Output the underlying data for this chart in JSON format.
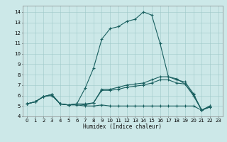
{
  "title": "",
  "xlabel": "Humidex (Indice chaleur)",
  "bg_color": "#cce8e8",
  "grid_color": "#9ec8c8",
  "line_color": "#1a6060",
  "xlim": [
    -0.5,
    23.5
  ],
  "ylim": [
    4.0,
    14.6
  ],
  "xticks": [
    0,
    1,
    2,
    3,
    4,
    5,
    6,
    7,
    8,
    9,
    10,
    11,
    12,
    13,
    14,
    15,
    16,
    17,
    18,
    19,
    20,
    21,
    22,
    23
  ],
  "yticks": [
    4,
    5,
    6,
    7,
    8,
    9,
    10,
    11,
    12,
    13,
    14
  ],
  "series": [
    [
      5.2,
      5.4,
      5.9,
      6.0,
      5.2,
      5.1,
      5.1,
      5.0,
      5.0,
      5.1,
      5.0,
      5.0,
      5.0,
      5.0,
      5.0,
      5.0,
      5.0,
      5.0,
      5.0,
      5.0,
      5.0,
      4.6,
      4.9
    ],
    [
      5.2,
      5.4,
      5.9,
      6.1,
      5.2,
      5.1,
      5.2,
      5.1,
      5.3,
      6.5,
      6.5,
      6.6,
      6.8,
      6.9,
      7.0,
      7.2,
      7.5,
      7.5,
      7.2,
      7.1,
      6.0,
      4.6,
      4.9
    ],
    [
      5.2,
      5.4,
      5.9,
      6.1,
      5.2,
      5.1,
      5.2,
      5.2,
      5.3,
      6.6,
      6.6,
      6.8,
      7.0,
      7.1,
      7.2,
      7.5,
      7.8,
      7.8,
      7.5,
      7.3,
      6.2,
      4.6,
      5.0
    ],
    [
      5.2,
      5.4,
      5.9,
      6.1,
      5.2,
      5.1,
      5.2,
      6.7,
      8.6,
      11.4,
      12.4,
      12.6,
      13.1,
      13.3,
      14.0,
      13.7,
      11.0,
      7.8,
      7.6,
      7.1,
      6.1,
      4.6,
      5.0
    ]
  ],
  "x_values": [
    0,
    1,
    2,
    3,
    4,
    5,
    6,
    7,
    8,
    9,
    10,
    11,
    12,
    13,
    14,
    15,
    16,
    17,
    18,
    19,
    20,
    21,
    22
  ]
}
